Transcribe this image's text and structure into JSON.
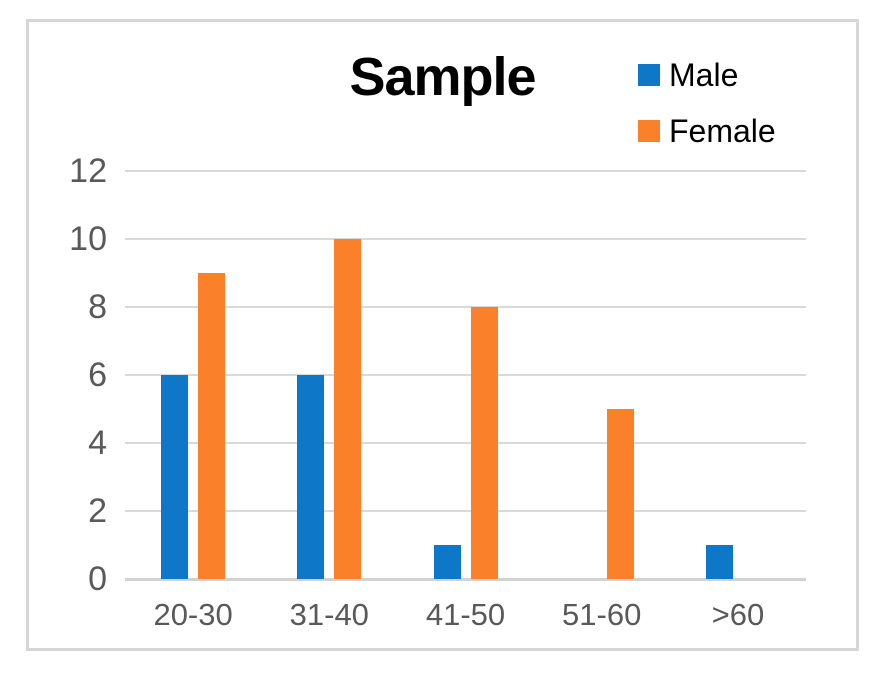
{
  "chart_data": {
    "type": "bar",
    "title": "Sample",
    "categories": [
      "20-30",
      "31-40",
      "41-50",
      "51-60",
      ">60"
    ],
    "series": [
      {
        "name": "Male",
        "color": "#0F77C8",
        "values": [
          6,
          6,
          1,
          0,
          1
        ]
      },
      {
        "name": "Female",
        "color": "#FA8129",
        "values": [
          9,
          10,
          8,
          5,
          0
        ]
      }
    ],
    "xlabel": "",
    "ylabel": "",
    "ylim": [
      0,
      12
    ],
    "yticks": [
      0,
      2,
      4,
      6,
      8,
      10,
      12
    ],
    "grid": true,
    "legend_position": "top-right",
    "colors": {
      "gridline": "#D9D9D9",
      "axis_line": "#D2D2D2",
      "tick_text": "#595959",
      "title_text": "#000000",
      "frame_border": "#D6D6D6"
    }
  }
}
